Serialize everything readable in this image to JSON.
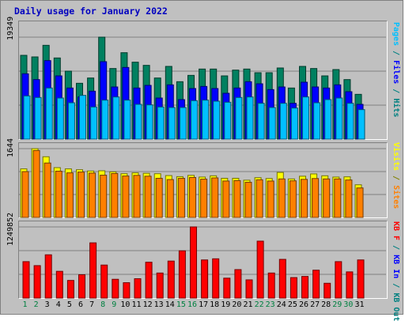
{
  "chart_data": {
    "type": "bar",
    "title": "Daily usage for January 2022",
    "categories": [
      "1",
      "2",
      "3",
      "4",
      "5",
      "6",
      "7",
      "8",
      "9",
      "10",
      "11",
      "12",
      "13",
      "14",
      "15",
      "16",
      "17",
      "18",
      "19",
      "20",
      "21",
      "22",
      "23",
      "24",
      "25",
      "26",
      "27",
      "28",
      "29",
      "30",
      "31"
    ],
    "weekend_days": [
      "1",
      "2",
      "8",
      "9",
      "15",
      "16",
      "22",
      "23",
      "29",
      "30"
    ],
    "panels": [
      {
        "name": "requests",
        "ymax_label": "19349",
        "ymax": 19349,
        "legend": [
          {
            "text": "Pages",
            "color": "#00c0ff"
          },
          {
            "text": " / ",
            "color": "#008080"
          },
          {
            "text": "Files",
            "color": "#0000ff"
          },
          {
            "text": " / ",
            "color": "#008080"
          },
          {
            "text": "Hits",
            "color": "#008080"
          }
        ],
        "series": [
          {
            "name": "Hits",
            "color": "#008060",
            "values": [
              15900,
              15600,
              17800,
              15400,
              12900,
              10600,
              11600,
              19349,
              13400,
              16400,
              14600,
              14000,
              11600,
              13800,
              10900,
              12100,
              13300,
              13300,
              12000,
              13100,
              13300,
              12600,
              12600,
              13500,
              9700,
              13800,
              13400,
              12000,
              13200,
              11300,
              8500
            ]
          },
          {
            "name": "Files",
            "color": "#0000ff",
            "values": [
              12400,
              11300,
              14900,
              12000,
              9700,
              8000,
              9100,
              14700,
              9900,
              13600,
              9700,
              10200,
              7800,
              10300,
              7500,
              9600,
              10000,
              9600,
              8700,
              9700,
              10900,
              10500,
              9400,
              9900,
              6800,
              10800,
              9900,
              9700,
              10300,
              9000,
              6600
            ]
          },
          {
            "name": "Pages",
            "color": "#00c0ff",
            "values": [
              8200,
              7900,
              9700,
              7800,
              6900,
              8300,
              6100,
              7400,
              8000,
              7400,
              6600,
              6500,
              6100,
              6000,
              6000,
              7300,
              7400,
              7200,
              7000,
              7900,
              8000,
              6800,
              6000,
              6800,
              5900,
              8000,
              6900,
              7500,
              7800,
              6800,
              5600
            ]
          }
        ]
      },
      {
        "name": "visits",
        "ymax_label": "1644",
        "ymax": 1644,
        "legend": [
          {
            "text": "Visits",
            "color": "#ffff00"
          },
          {
            "text": " / ",
            "color": "#808000"
          },
          {
            "text": "Sites",
            "color": "#ff8000"
          }
        ],
        "series": [
          {
            "name": "Visits",
            "color": "#ffff00",
            "values": [
              1160,
              1644,
              1450,
              1190,
              1160,
              1140,
              1110,
              1115,
              1090,
              1045,
              1065,
              1055,
              1045,
              1000,
              975,
              1005,
              965,
              995,
              935,
              935,
              890,
              950,
              930,
              1075,
              920,
              985,
              1040,
              995,
              965,
              970,
              780
            ]
          },
          {
            "name": "Sites",
            "color": "#ff8000",
            "values": [
              1095,
              1600,
              1300,
              1105,
              1065,
              1085,
              1060,
              1010,
              1050,
              990,
              1005,
              985,
              935,
              905,
              935,
              955,
              915,
              945,
              870,
              880,
              840,
              900,
              870,
              920,
              875,
              910,
              930,
              920,
              920,
              895,
              705
            ]
          }
        ]
      },
      {
        "name": "traffic",
        "ymax_label": "1249852",
        "ymax": 1249852,
        "legend": [
          {
            "text": "KB F",
            "color": "#ff0000"
          },
          {
            "text": " / ",
            "color": "#008080"
          },
          {
            "text": "KB In",
            "color": "#0000ff"
          },
          {
            "text": " / ",
            "color": "#008080"
          },
          {
            "text": "KB Out",
            "color": "#008080"
          }
        ],
        "series": [
          {
            "name": "KB F",
            "color": "#ff0000",
            "values": [
              640000,
              570000,
              760000,
              470000,
              310000,
              410000,
              970000,
              580000,
              330000,
              270000,
              340000,
              630000,
              440000,
              650000,
              830000,
              1249852,
              670000,
              690000,
              350000,
              500000,
              320000,
              1000000,
              440000,
              680000,
              360000,
              380000,
              490000,
              260000,
              640000,
              460000,
              670000
            ]
          }
        ]
      }
    ]
  }
}
